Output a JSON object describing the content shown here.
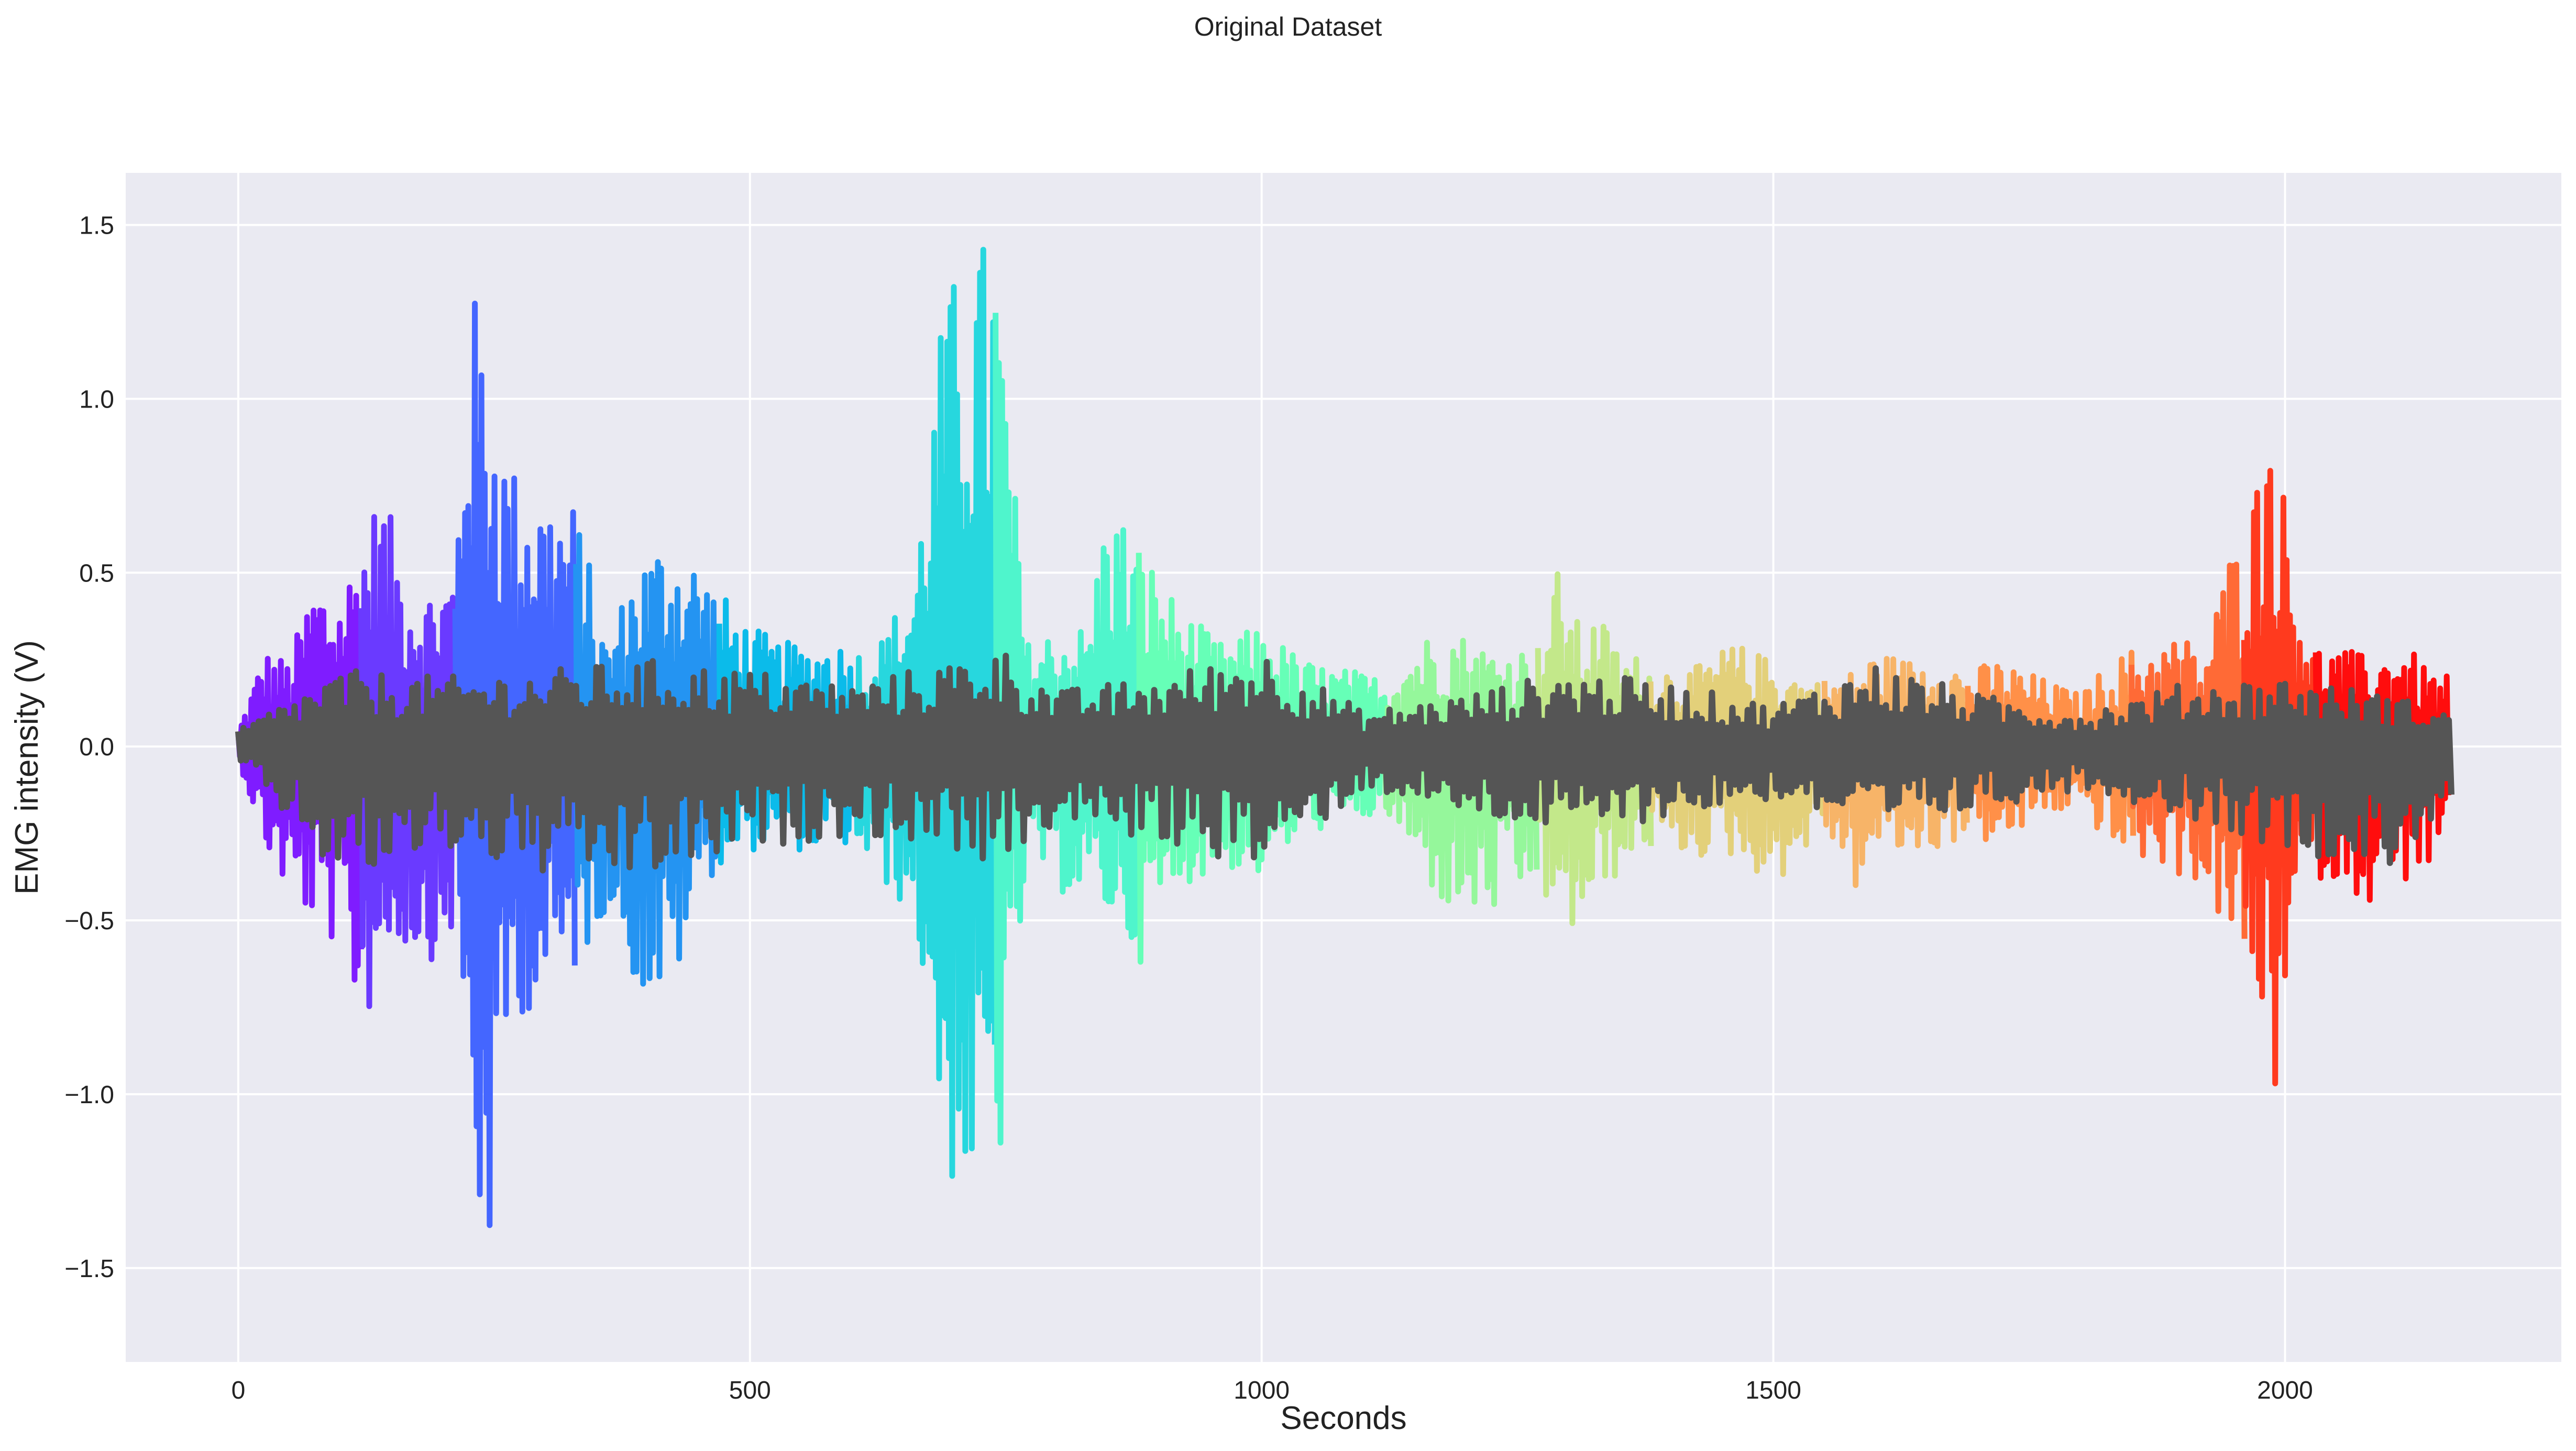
{
  "chart_data": {
    "type": "line",
    "title": "Original Dataset",
    "xlabel": "Seconds",
    "ylabel": "EMG intensity (V)",
    "xlim": [
      -110,
      2270
    ],
    "ylim": [
      -1.77,
      1.65
    ],
    "x_ticks": [
      0,
      500,
      1000,
      1500,
      2000
    ],
    "x_tick_labels": [
      "0",
      "500",
      "1000",
      "1500",
      "2000"
    ],
    "y_ticks": [
      -1.5,
      -1.0,
      -0.5,
      0.0,
      0.5,
      1.0,
      1.5
    ],
    "y_tick_labels": [
      "−1.5",
      "−1.0",
      "−0.5",
      "0.0",
      "0.5",
      "1.0",
      "1.5"
    ],
    "grid": true,
    "background": "#eaeaf2",
    "baseline_color": "#555555",
    "segment_colors": [
      "#7f1cff",
      "#6a3aff",
      "#4466ff",
      "#2494f2",
      "#0bbbea",
      "#27d7de",
      "#4ff5cc",
      "#66ffb7",
      "#95f79b",
      "#c3e88a",
      "#e3d07a",
      "#f7b468",
      "#ff9048",
      "#ff6a36",
      "#ff3a1e",
      "#ff0d0d"
    ],
    "segments": [
      {
        "x": [
          0,
          25,
          50,
          75,
          100,
          120
        ],
        "upper": [
          0.05,
          0.28,
          0.25,
          0.5,
          0.45,
          0.62
        ],
        "lower": [
          -0.05,
          -0.3,
          -0.45,
          -0.52,
          -0.6,
          -0.84
        ]
      },
      {
        "x": [
          120,
          140,
          160,
          180,
          200,
          212
        ],
        "upper": [
          0.62,
          0.75,
          0.55,
          0.45,
          0.5,
          0.55
        ],
        "lower": [
          -0.84,
          -0.62,
          -0.58,
          -0.62,
          -0.6,
          -0.5
        ]
      },
      {
        "x": [
          212,
          225,
          240,
          265,
          300,
          330
        ],
        "upper": [
          0.55,
          1.37,
          1.2,
          0.82,
          0.75,
          0.7
        ],
        "lower": [
          -0.5,
          -1.17,
          -1.62,
          -0.78,
          -0.75,
          -0.65
        ]
      },
      {
        "x": [
          330,
          360,
          390,
          420,
          450,
          470
        ],
        "upper": [
          0.7,
          0.3,
          0.55,
          0.62,
          0.55,
          0.45
        ],
        "lower": [
          -0.65,
          -0.45,
          -0.72,
          -0.76,
          -0.4,
          -0.35
        ]
      },
      {
        "x": [
          470,
          500,
          530,
          560,
          580,
          600
        ],
        "upper": [
          0.45,
          0.35,
          0.3,
          0.3,
          0.32,
          0.28
        ],
        "lower": [
          -0.35,
          -0.3,
          -0.3,
          -0.3,
          -0.28,
          -0.3
        ]
      },
      {
        "x": [
          600,
          630,
          660,
          690,
          710,
          740
        ],
        "upper": [
          0.28,
          0.32,
          0.5,
          1.3,
          1.42,
          1.5
        ],
        "lower": [
          -0.3,
          -0.4,
          -0.5,
          -1.25,
          -1.3,
          -1.3
        ]
      },
      {
        "x": [
          740,
          770,
          800,
          830,
          850,
          880
        ],
        "upper": [
          1.5,
          0.3,
          0.35,
          0.35,
          0.74,
          0.6
        ],
        "lower": [
          -1.3,
          -0.32,
          -0.42,
          -0.45,
          -0.5,
          -0.62
        ]
      },
      {
        "x": [
          880,
          920,
          960,
          1000,
          1040,
          1120
        ],
        "upper": [
          0.6,
          0.4,
          0.3,
          0.35,
          0.25,
          0.2
        ],
        "lower": [
          -0.62,
          -0.4,
          -0.35,
          -0.38,
          -0.25,
          -0.2
        ]
      },
      {
        "x": [
          1120,
          1150,
          1180,
          1210,
          1240,
          1270
        ],
        "upper": [
          0.2,
          0.3,
          0.36,
          0.3,
          0.28,
          0.3
        ],
        "lower": [
          -0.2,
          -0.35,
          -0.48,
          -0.5,
          -0.48,
          -0.4
        ]
      },
      {
        "x": [
          1270,
          1290,
          1310,
          1330,
          1350,
          1380
        ],
        "upper": [
          0.3,
          0.52,
          0.35,
          0.38,
          0.28,
          0.25
        ],
        "lower": [
          -0.4,
          -0.58,
          -0.52,
          -0.45,
          -0.35,
          -0.3
        ]
      },
      {
        "x": [
          1380,
          1420,
          1460,
          1500,
          1530,
          1550
        ],
        "upper": [
          0.25,
          0.22,
          0.3,
          0.25,
          0.2,
          0.2
        ],
        "lower": [
          -0.3,
          -0.32,
          -0.32,
          -0.4,
          -0.3,
          -0.25
        ]
      },
      {
        "x": [
          1550,
          1580,
          1600,
          1630,
          1660,
          1690
        ],
        "upper": [
          0.2,
          0.22,
          0.28,
          0.25,
          0.28,
          0.22
        ],
        "lower": [
          -0.25,
          -0.42,
          -0.3,
          -0.32,
          -0.3,
          -0.25
        ]
      },
      {
        "x": [
          1690,
          1720,
          1760,
          1800,
          1830,
          1850
        ],
        "upper": [
          0.22,
          0.25,
          0.2,
          0.15,
          0.25,
          0.28
        ],
        "lower": [
          -0.25,
          -0.3,
          -0.2,
          -0.18,
          -0.3,
          -0.32
        ]
      },
      {
        "x": [
          1850,
          1880,
          1900,
          1920,
          1940,
          1960
        ],
        "upper": [
          0.28,
          0.3,
          0.33,
          0.25,
          0.5,
          0.68
        ],
        "lower": [
          -0.32,
          -0.35,
          -0.38,
          -0.4,
          -0.55,
          -0.65
        ]
      },
      {
        "x": [
          1960,
          1975,
          1985,
          1995,
          2010,
          2030
        ],
        "upper": [
          0.68,
          0.8,
          1.04,
          0.82,
          0.5,
          0.3
        ],
        "lower": [
          -0.65,
          -0.8,
          -1.13,
          -0.8,
          -0.45,
          -0.38
        ]
      },
      {
        "x": [
          2030,
          2060,
          2090,
          2110,
          2140,
          2160
        ],
        "upper": [
          0.3,
          0.28,
          0.25,
          0.32,
          0.22,
          0.2
        ],
        "lower": [
          -0.38,
          -0.4,
          -0.48,
          -0.4,
          -0.35,
          -0.3
        ]
      }
    ],
    "baseline_envelope": {
      "x": [
        0,
        100,
        200,
        300,
        400,
        500,
        600,
        700,
        740,
        800,
        900,
        1000,
        1100,
        1200,
        1300,
        1400,
        1500,
        1600,
        1700,
        1800,
        1900,
        2000,
        2100,
        2160
      ],
      "upper": [
        0.05,
        0.22,
        0.2,
        0.22,
        0.25,
        0.22,
        0.18,
        0.25,
        0.3,
        0.16,
        0.2,
        0.28,
        0.1,
        0.15,
        0.22,
        0.18,
        0.12,
        0.24,
        0.15,
        0.1,
        0.18,
        0.2,
        0.15,
        0.1
      ],
      "lower": [
        -0.05,
        -0.4,
        -0.3,
        -0.38,
        -0.38,
        -0.3,
        -0.25,
        -0.3,
        -0.35,
        -0.22,
        -0.28,
        -0.35,
        -0.12,
        -0.2,
        -0.25,
        -0.2,
        -0.15,
        -0.25,
        -0.18,
        -0.12,
        -0.2,
        -0.3,
        -0.35,
        -0.15
      ]
    }
  }
}
